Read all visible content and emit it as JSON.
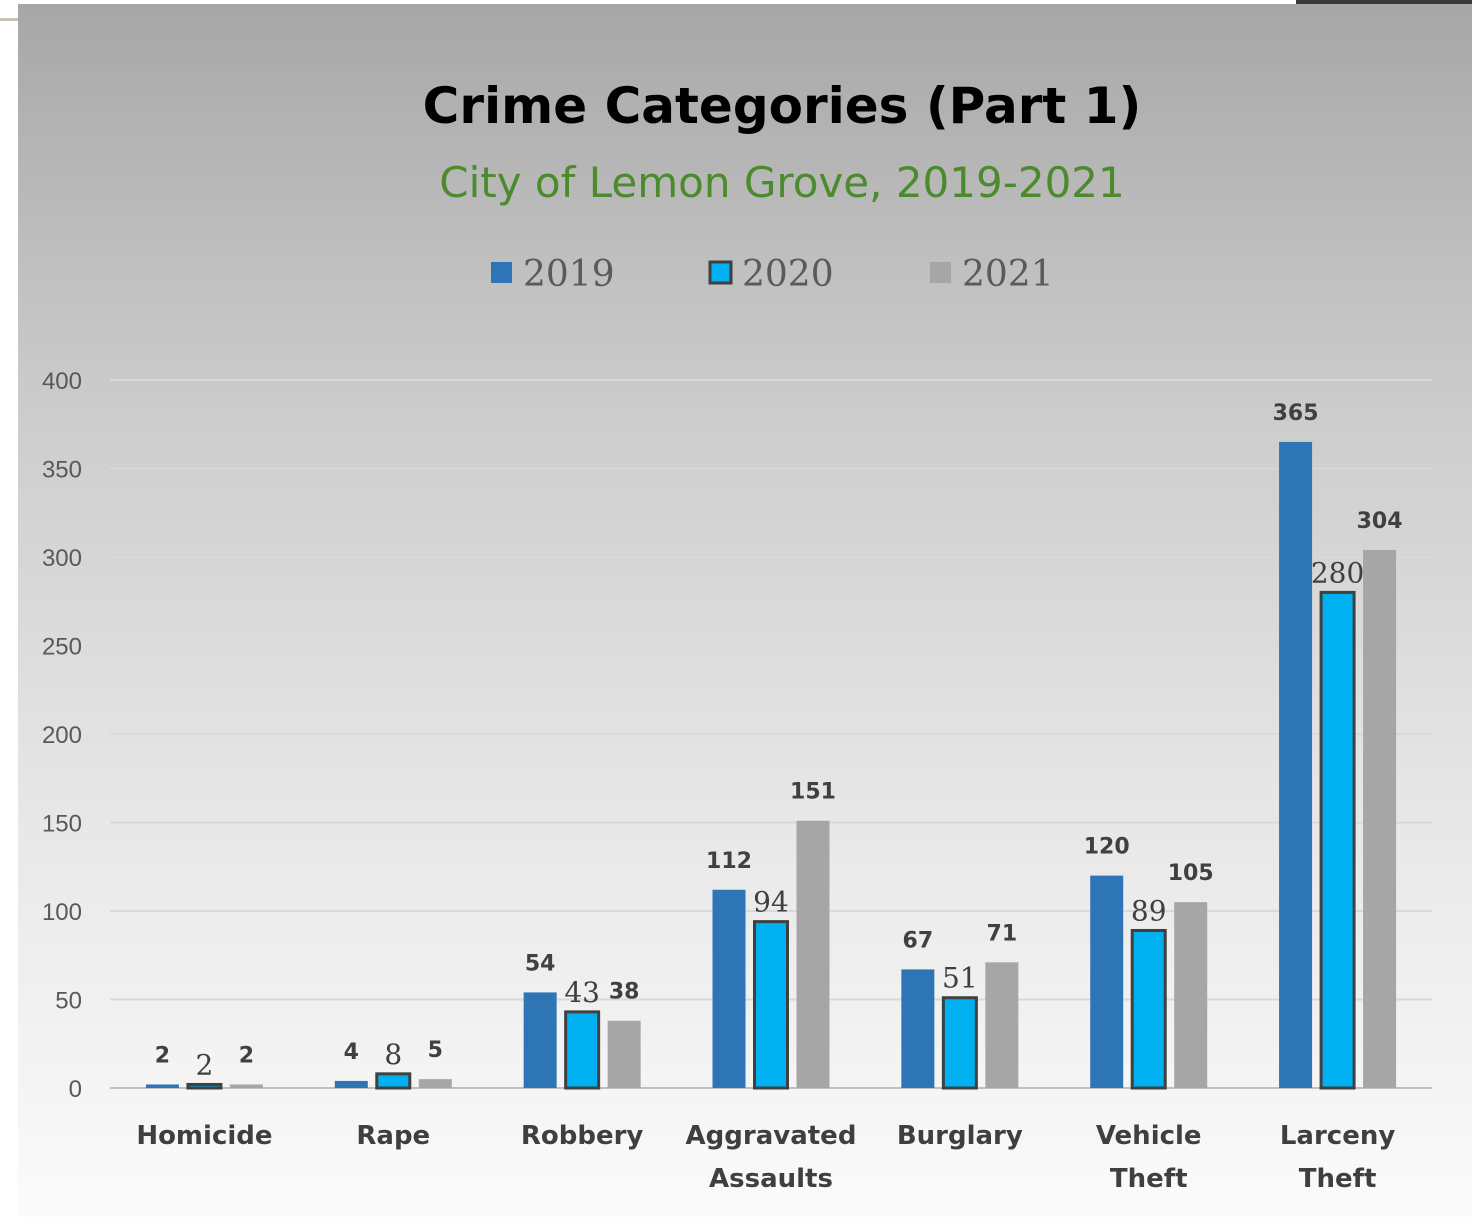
{
  "chart_data": {
    "type": "bar",
    "title": "Crime Categories (Part 1)",
    "subtitle": "City of Lemon Grove, 2019-2021",
    "categories": [
      [
        "Homicide"
      ],
      [
        "Rape"
      ],
      [
        "Robbery"
      ],
      [
        "Aggravated",
        "Assaults"
      ],
      [
        "Burglary"
      ],
      [
        "Vehicle",
        "Theft"
      ],
      [
        "Larceny",
        "Theft"
      ]
    ],
    "series": [
      {
        "name": "2019",
        "values": [
          2,
          4,
          54,
          112,
          67,
          120,
          365
        ],
        "color": "#2e75b6"
      },
      {
        "name": "2020",
        "values": [
          2,
          8,
          43,
          94,
          51,
          89,
          280
        ],
        "color": "#00b0f0",
        "outline": "#404040"
      },
      {
        "name": "2021",
        "values": [
          2,
          5,
          38,
          151,
          71,
          105,
          304
        ],
        "color": "#a6a6a6"
      }
    ],
    "ylim": [
      0,
      400
    ],
    "yticks": [
      0,
      50,
      100,
      150,
      200,
      250,
      300,
      350,
      400
    ],
    "grid": true,
    "legend_position": "top",
    "colors": {
      "title": "#000000",
      "subtitle": "#4b8b2e",
      "gridline": "#d9d9d9",
      "axis_text": "#595959"
    }
  }
}
